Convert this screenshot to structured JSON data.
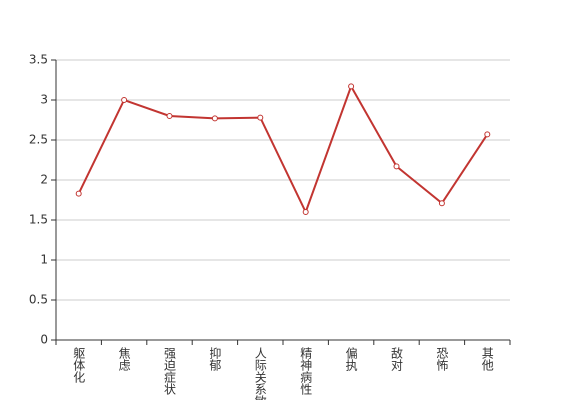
{
  "chart_data": {
    "type": "line",
    "categories": [
      "躯体化",
      "焦虑",
      "强迫症状",
      "抑郁",
      "人际关系敏感",
      "精神病性",
      "偏执",
      "敌对",
      "恐怖",
      "其他"
    ],
    "series": [
      {
        "color": "#c23531",
        "values": [
          1.83,
          3.0,
          2.8,
          2.77,
          2.78,
          1.6,
          3.17,
          2.17,
          1.71,
          2.57
        ]
      }
    ],
    "ylim": [
      0,
      3.5
    ],
    "yticks": [
      0,
      0.5,
      1,
      1.5,
      2,
      2.5,
      3,
      3.5
    ],
    "grid": true
  }
}
